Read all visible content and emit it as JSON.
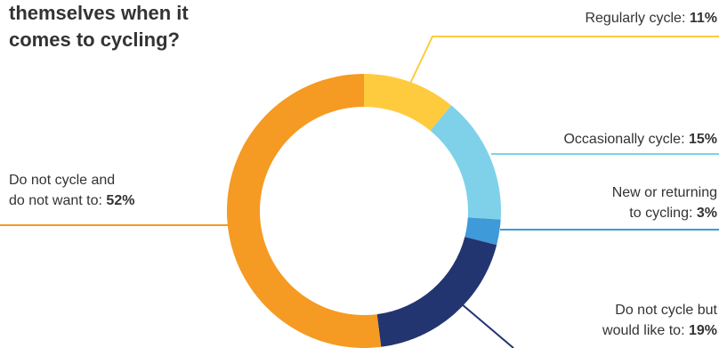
{
  "title_lines": [
    "themselves when it",
    "comes to cycling?"
  ],
  "chart_data": {
    "type": "pie",
    "style": "donut",
    "categories": [
      "Regularly cycle:",
      "Occasionally cycle:",
      "New or returning to cycling:",
      "Do not cycle but would like to:",
      "Do not cycle and do not want to:"
    ],
    "values": [
      11,
      15,
      3,
      19,
      52
    ],
    "value_labels": [
      "11%",
      "15%",
      "3%",
      "19%",
      "52%"
    ],
    "colors": [
      "#ffcb3e",
      "#7fd1ea",
      "#3f9ad9",
      "#233570",
      "#f59a23"
    ],
    "label_lines": [
      [
        "Regularly cycle:"
      ],
      [
        "Occasionally cycle:"
      ],
      [
        "New or returning",
        "to cycling:"
      ],
      [
        "Do not cycle but",
        "would like to:"
      ],
      [
        "Do not cycle and",
        "do not want to:"
      ]
    ]
  }
}
